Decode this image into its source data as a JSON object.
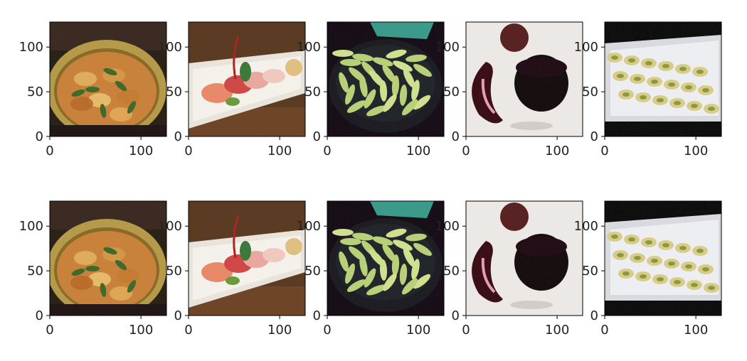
{
  "chart_data": {
    "type": "image-grid",
    "rows": 2,
    "cols": 5,
    "xlim": [
      0,
      128
    ],
    "ylim": [
      128,
      0
    ],
    "xticks": [
      0,
      100
    ],
    "yticks": [
      0,
      50,
      100
    ],
    "xtick_labels": [
      "0",
      "100"
    ],
    "ytick_labels": [
      "0",
      "50",
      "100"
    ],
    "panels": [
      {
        "row": 0,
        "col": 0,
        "subject": "curry-hot-pot",
        "noisy": true
      },
      {
        "row": 0,
        "col": 1,
        "subject": "sashimi-plate",
        "noisy": true
      },
      {
        "row": 0,
        "col": 2,
        "subject": "edamame-bowl",
        "noisy": true
      },
      {
        "row": 0,
        "col": 3,
        "subject": "chocolate-dessert",
        "noisy": true
      },
      {
        "row": 0,
        "col": 4,
        "subject": "sushi-rolls-tray",
        "noisy": true
      },
      {
        "row": 1,
        "col": 0,
        "subject": "curry-hot-pot",
        "noisy": false
      },
      {
        "row": 1,
        "col": 1,
        "subject": "sashimi-plate",
        "noisy": false
      },
      {
        "row": 1,
        "col": 2,
        "subject": "edamame-bowl",
        "noisy": false
      },
      {
        "row": 1,
        "col": 3,
        "subject": "chocolate-dessert",
        "noisy": false
      },
      {
        "row": 1,
        "col": 4,
        "subject": "sushi-rolls-tray",
        "noisy": false
      }
    ]
  }
}
